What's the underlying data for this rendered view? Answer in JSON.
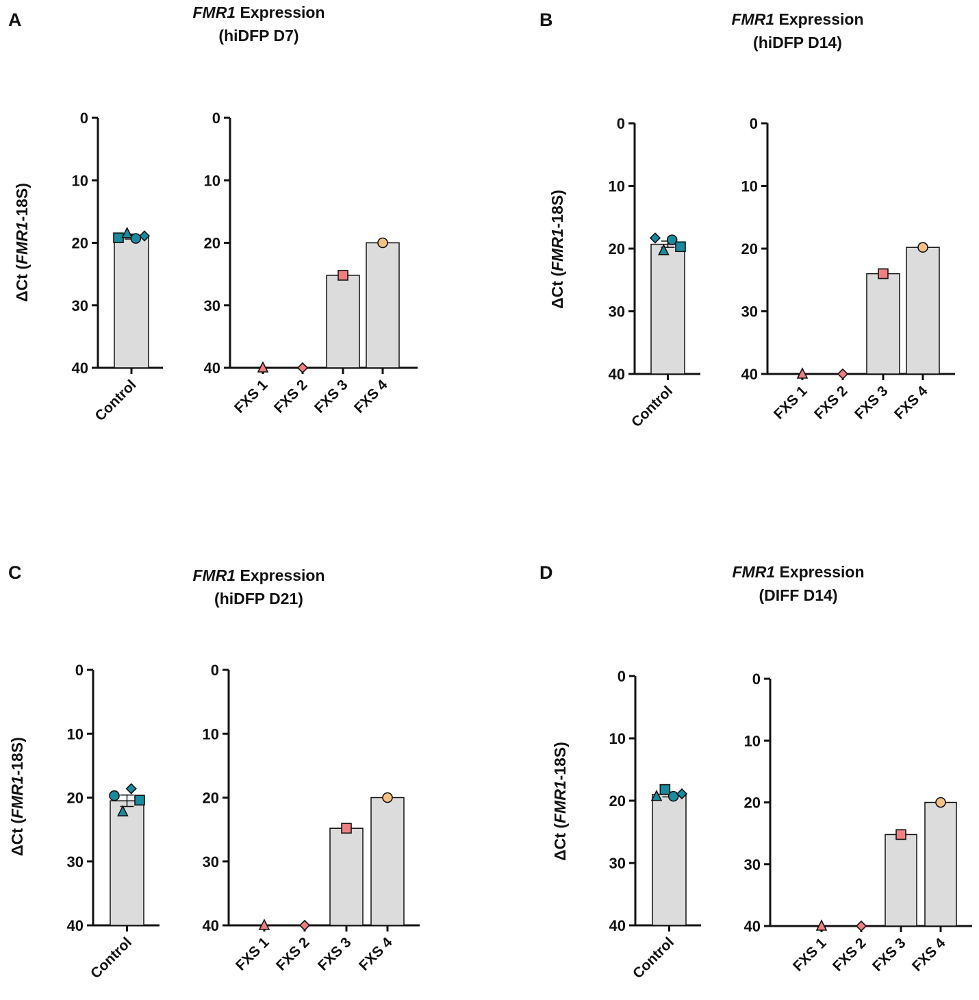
{
  "figure": {
    "y_axis_label_prefix": "ΔCt (",
    "y_axis_label_gene": "FMR1",
    "y_axis_label_suffix": "-18S)"
  },
  "colors": {
    "control": "#1a8a9e",
    "fxs_pink": "#ef7f82",
    "fxs_orange": "#f6c185",
    "bar_fill": "#dcdcdc",
    "stroke": "#111111"
  },
  "chart_data": [
    {
      "panel_letter": "A",
      "title_gene": "FMR1",
      "title_rest": " Expression",
      "subtitle": "(hiDFP D7)",
      "type": "bar",
      "ylabel": "ΔCt (FMR1-18S)",
      "ylim": [
        0,
        40
      ],
      "y_inverted": true,
      "yticks": [
        "0",
        "10",
        "20",
        "30",
        "40"
      ],
      "control": {
        "categories": [
          "Control"
        ],
        "values": [
          19
        ],
        "error": 0.4,
        "points": [
          {
            "shape": "square",
            "value": 19.2
          },
          {
            "shape": "triangle",
            "value": 18.5
          },
          {
            "shape": "circle",
            "value": 19.3
          },
          {
            "shape": "diamond",
            "value": 18.9
          }
        ]
      },
      "fxs": {
        "categories": [
          "FXS 1",
          "FXS 2",
          "FXS 3",
          "FXS 4"
        ],
        "values": [
          40,
          40,
          25.2,
          20
        ],
        "markers": [
          "triangle",
          "diamond",
          "square",
          "circle"
        ],
        "marker_colors": [
          "pink",
          "pink",
          "pink",
          "orange"
        ]
      }
    },
    {
      "panel_letter": "B",
      "title_gene": "FMR1",
      "title_rest": " Expression",
      "subtitle": "(hiDFP D14)",
      "type": "bar",
      "ylabel": "ΔCt (FMR1-18S)",
      "ylim": [
        0,
        40
      ],
      "y_inverted": true,
      "yticks": [
        "0",
        "10",
        "20",
        "30",
        "40"
      ],
      "control": {
        "categories": [
          "Control"
        ],
        "values": [
          19.3
        ],
        "error": 0.5,
        "points": [
          {
            "shape": "diamond",
            "value": 18.3
          },
          {
            "shape": "triangle",
            "value": 20.3
          },
          {
            "shape": "circle",
            "value": 18.6
          },
          {
            "shape": "square",
            "value": 19.7
          }
        ]
      },
      "fxs": {
        "categories": [
          "FXS 1",
          "FXS 2",
          "FXS 3",
          "FXS 4"
        ],
        "values": [
          40,
          40,
          24,
          19.8
        ],
        "markers": [
          "triangle",
          "diamond",
          "square",
          "circle"
        ],
        "marker_colors": [
          "pink",
          "pink",
          "pink",
          "orange"
        ]
      }
    },
    {
      "panel_letter": "C",
      "title_gene": "FMR1",
      "title_rest": " Expression",
      "subtitle": "(hiDFP D21)",
      "type": "bar",
      "ylabel": "ΔCt (FMR1-18S)",
      "ylim": [
        0,
        40
      ],
      "y_inverted": true,
      "yticks": [
        "0",
        "10",
        "20",
        "30",
        "40"
      ],
      "control": {
        "categories": [
          "Control"
        ],
        "values": [
          20.5
        ],
        "error": 0.9,
        "points": [
          {
            "shape": "circle",
            "value": 19.7
          },
          {
            "shape": "triangle",
            "value": 22.2
          },
          {
            "shape": "diamond",
            "value": 18.6
          },
          {
            "shape": "square",
            "value": 20.4
          }
        ]
      },
      "fxs": {
        "categories": [
          "FXS 1",
          "FXS 2",
          "FXS 3",
          "FXS 4"
        ],
        "values": [
          40,
          40,
          24.8,
          20
        ],
        "markers": [
          "triangle",
          "diamond",
          "square",
          "circle"
        ],
        "marker_colors": [
          "pink",
          "pink",
          "pink",
          "orange"
        ]
      }
    },
    {
      "panel_letter": "D",
      "title_gene": "FMR1",
      "title_rest": " Expression",
      "subtitle": "(DIFF D14)",
      "type": "bar",
      "ylabel": "ΔCt (FMR1-18S)",
      "ylim": [
        0,
        40
      ],
      "y_inverted": true,
      "yticks": [
        "0",
        "10",
        "20",
        "30",
        "40"
      ],
      "control": {
        "categories": [
          "Control"
        ],
        "values": [
          19
        ],
        "error": 0.4,
        "points": [
          {
            "shape": "triangle",
            "value": 19.3
          },
          {
            "shape": "square",
            "value": 18.2
          },
          {
            "shape": "circle",
            "value": 19.3
          },
          {
            "shape": "diamond",
            "value": 18.9
          }
        ]
      },
      "fxs": {
        "categories": [
          "FXS 1",
          "FXS 2",
          "FXS 3",
          "FXS 4"
        ],
        "values": [
          40,
          40,
          25.2,
          20
        ],
        "markers": [
          "triangle",
          "diamond",
          "square",
          "circle"
        ],
        "marker_colors": [
          "pink",
          "pink",
          "pink",
          "orange"
        ]
      }
    }
  ]
}
